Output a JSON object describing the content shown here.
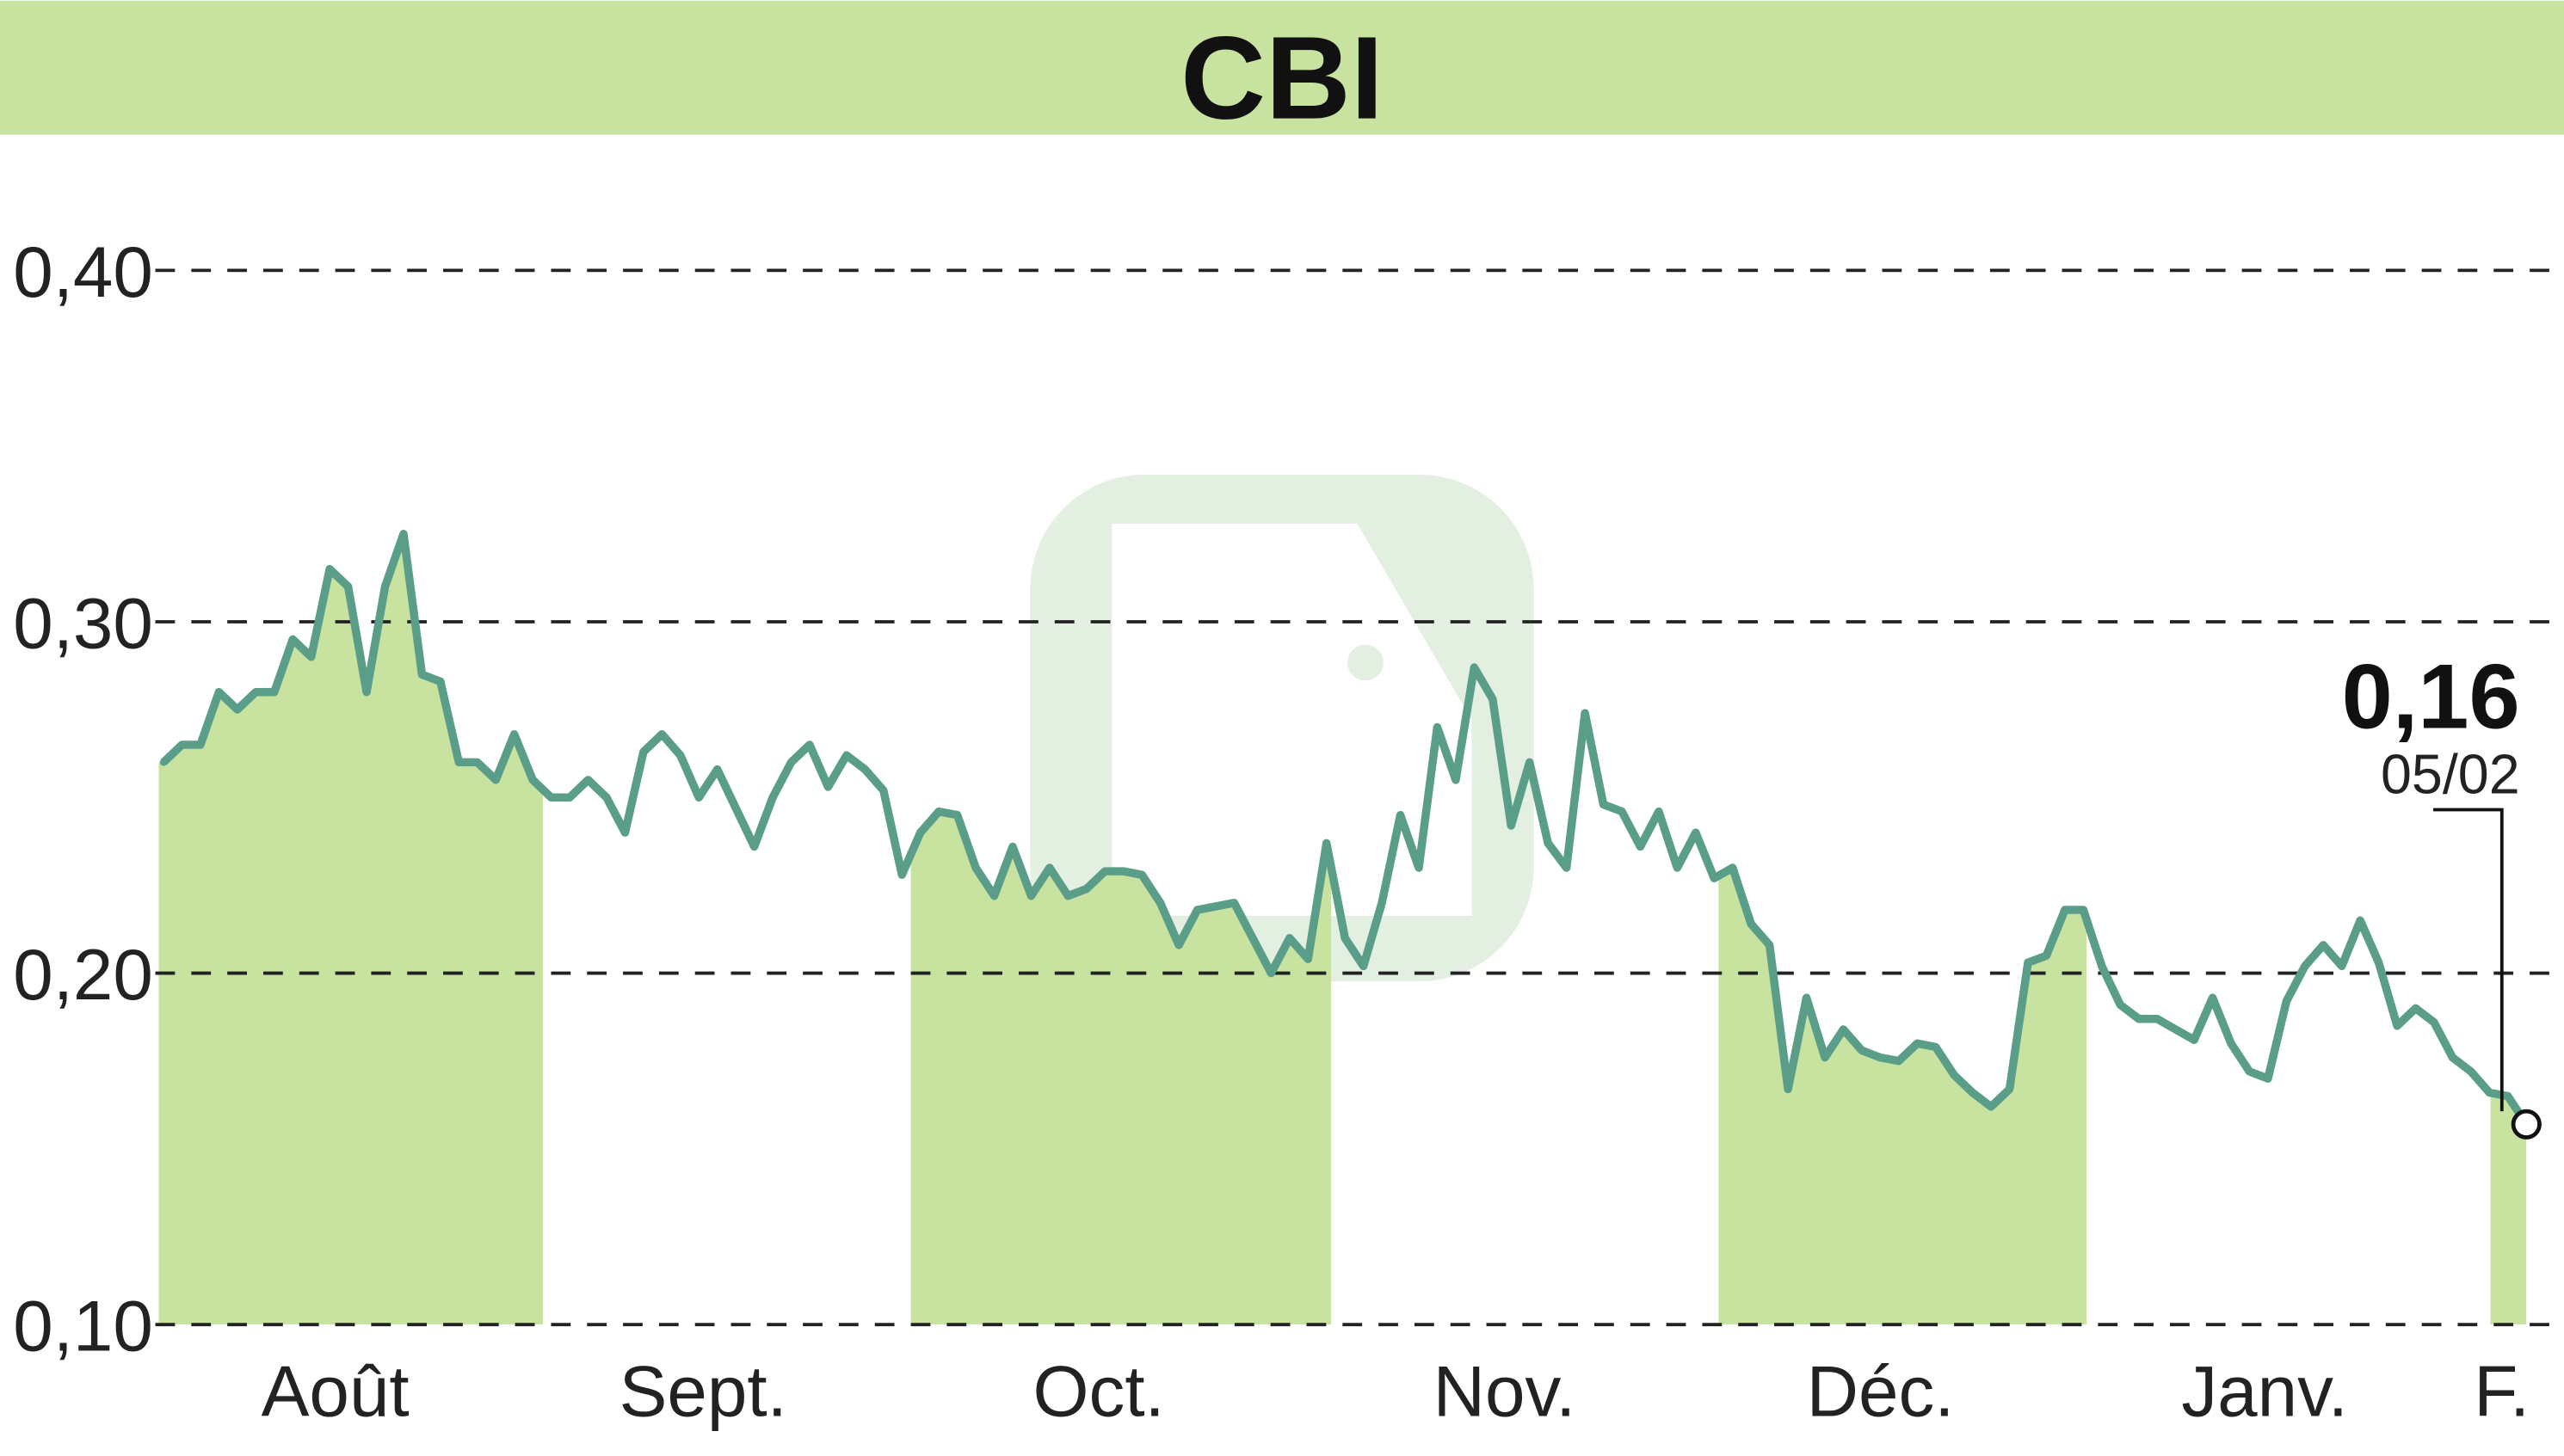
{
  "chart_data": {
    "type": "line",
    "title": "CBI",
    "ylim": [
      0.1,
      0.42
    ],
    "yticks": [
      {
        "value": 0.4,
        "label": "0,40"
      },
      {
        "value": 0.3,
        "label": "0,30"
      },
      {
        "value": 0.2,
        "label": "0,20"
      },
      {
        "value": 0.1,
        "label": "0,10"
      }
    ],
    "months": [
      "Août",
      "Sept.",
      "Oct.",
      "Nov.",
      "Déc.",
      "Janv.",
      "F."
    ],
    "shaded_months": [
      "Août",
      "Oct.",
      "Déc.",
      "F."
    ],
    "grid": "horizontal-dashed",
    "last_value": {
      "label": "0,16",
      "date": "05/02"
    },
    "colors": {
      "banner": "#c8e2a0",
      "fill": "#c8e2a0",
      "line": "#5a9e8a",
      "grid": "#222222"
    },
    "values": [
      0.26,
      0.265,
      0.265,
      0.28,
      0.275,
      0.28,
      0.28,
      0.295,
      0.29,
      0.315,
      0.31,
      0.28,
      0.31,
      0.325,
      0.285,
      0.283,
      0.26,
      0.26,
      0.255,
      0.268,
      0.255,
      0.25,
      0.25,
      0.255,
      0.25,
      0.24,
      0.263,
      0.268,
      0.262,
      0.25,
      0.258,
      0.247,
      0.236,
      0.25,
      0.26,
      0.265,
      0.253,
      0.262,
      0.258,
      0.252,
      0.228,
      0.24,
      0.246,
      0.245,
      0.23,
      0.222,
      0.236,
      0.222,
      0.23,
      0.222,
      0.224,
      0.229,
      0.229,
      0.228,
      0.22,
      0.208,
      0.218,
      0.219,
      0.22,
      0.21,
      0.2,
      0.21,
      0.204,
      0.237,
      0.21,
      0.202,
      0.22,
      0.245,
      0.23,
      0.27,
      0.255,
      0.287,
      0.278,
      0.242,
      0.26,
      0.237,
      0.23,
      0.274,
      0.248,
      0.246,
      0.236,
      0.246,
      0.23,
      0.24,
      0.227,
      0.23,
      0.214,
      0.208,
      0.167,
      0.193,
      0.176,
      0.184,
      0.178,
      0.176,
      0.175,
      0.18,
      0.179,
      0.171,
      0.166,
      0.162,
      0.167,
      0.203,
      0.205,
      0.218,
      0.218,
      0.202,
      0.191,
      0.187,
      0.187,
      0.184,
      0.181,
      0.193,
      0.18,
      0.172,
      0.17,
      0.192,
      0.202,
      0.208,
      0.202,
      0.215,
      0.203,
      0.185,
      0.19,
      0.186,
      0.176,
      0.172,
      0.166,
      0.165,
      0.157
    ]
  }
}
